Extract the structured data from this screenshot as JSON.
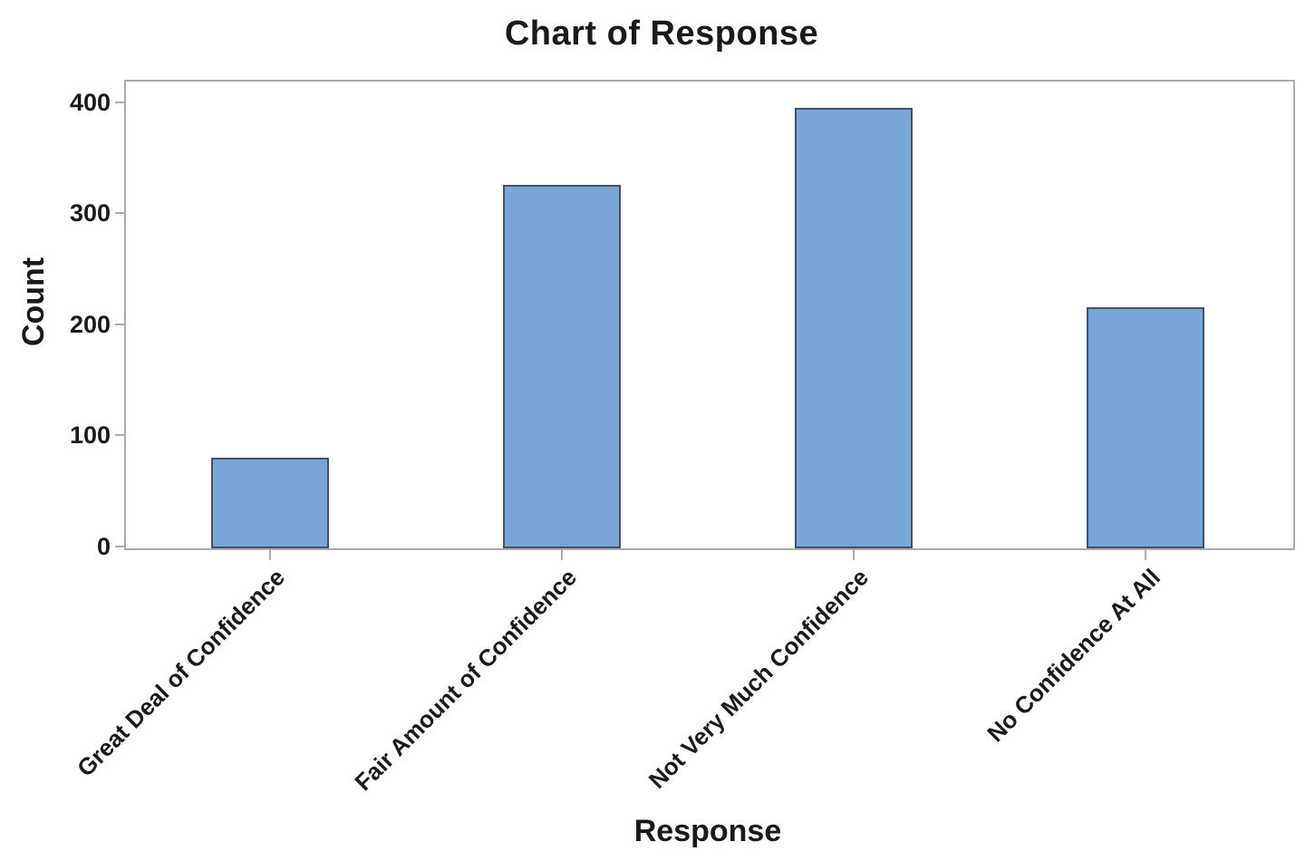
{
  "chart_data": {
    "type": "bar",
    "title": "Chart of Response",
    "xlabel": "Response",
    "ylabel": "Count",
    "categories": [
      "Great Deal of Confidence",
      "Fair Amount of Confidence",
      "Not Very Much Confidence",
      "No Confidence At All"
    ],
    "values": [
      80,
      325,
      395,
      215
    ],
    "yticks": [
      0,
      100,
      200,
      300,
      400
    ],
    "ylim": [
      0,
      420
    ],
    "grid": false,
    "legend_position": "none",
    "colors": {
      "bar_fill": "#7aa5d8",
      "bar_border": "#42526b",
      "axis_line": "#ababab",
      "text": "#1a1a1a",
      "background": "#ffffff"
    }
  }
}
